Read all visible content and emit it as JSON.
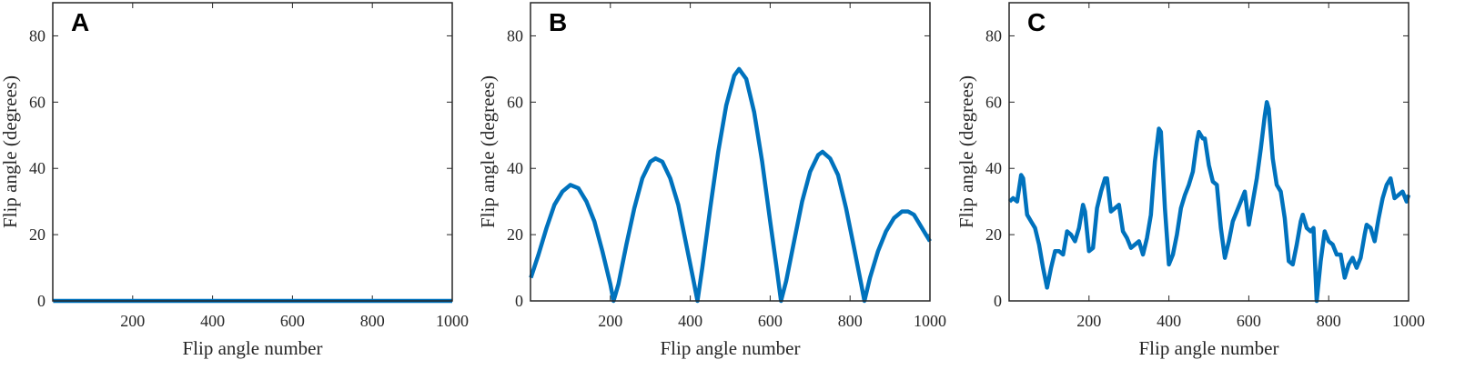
{
  "chart_data": [
    {
      "type": "line",
      "title": "A",
      "xlabel": "Flip angle number",
      "ylabel": "Flip angle (degrees)",
      "color": "#0072bd",
      "x": [
        1,
        1000
      ],
      "values": [
        0,
        0
      ],
      "xlim": [
        0,
        1000
      ],
      "xticks": [
        200,
        400,
        600,
        800,
        1000
      ],
      "ylim": [
        0,
        90
      ],
      "yticks": [
        0,
        20,
        40,
        60,
        80
      ]
    },
    {
      "type": "line",
      "title": "B",
      "xlabel": "Flip angle number",
      "ylabel": "Flip angle (degrees)",
      "color": "#0072bd",
      "x": [
        1,
        20,
        40,
        60,
        80,
        100,
        120,
        140,
        160,
        180,
        200,
        208,
        220,
        240,
        260,
        280,
        300,
        313,
        330,
        350,
        370,
        390,
        410,
        418,
        430,
        450,
        470,
        490,
        510,
        522,
        540,
        560,
        580,
        600,
        615,
        627,
        640,
        660,
        680,
        700,
        720,
        731,
        750,
        770,
        790,
        810,
        828,
        836,
        850,
        870,
        890,
        910,
        930,
        945,
        960,
        980,
        1000
      ],
      "values": [
        7,
        14,
        22,
        29,
        33,
        35,
        34,
        30,
        24,
        15,
        5,
        0,
        5,
        17,
        28,
        37,
        42,
        43,
        42,
        37,
        29,
        17,
        5,
        0,
        10,
        28,
        45,
        59,
        68,
        70,
        67,
        57,
        42,
        24,
        11,
        0,
        6,
        18,
        30,
        39,
        44,
        45,
        43,
        38,
        28,
        16,
        5,
        0,
        7,
        15,
        21,
        25,
        27,
        27,
        26,
        22,
        18
      ],
      "xlim": [
        0,
        1000
      ],
      "xticks": [
        200,
        400,
        600,
        800,
        1000
      ],
      "ylim": [
        0,
        90
      ],
      "yticks": [
        0,
        20,
        40,
        60,
        80
      ]
    },
    {
      "type": "line",
      "title": "C",
      "xlabel": "Flip angle number",
      "ylabel": "Flip angle (degrees)",
      "color": "#0072bd",
      "x": [
        1,
        10,
        20,
        30,
        35,
        45,
        55,
        65,
        75,
        85,
        95,
        105,
        115,
        125,
        135,
        145,
        155,
        165,
        175,
        185,
        190,
        200,
        210,
        220,
        230,
        240,
        245,
        255,
        265,
        275,
        285,
        295,
        305,
        315,
        325,
        335,
        345,
        355,
        365,
        375,
        380,
        390,
        400,
        410,
        420,
        430,
        440,
        450,
        460,
        470,
        475,
        485,
        490,
        500,
        510,
        520,
        530,
        540,
        550,
        560,
        570,
        580,
        590,
        600,
        610,
        620,
        630,
        640,
        645,
        650,
        660,
        670,
        680,
        690,
        700,
        710,
        720,
        730,
        735,
        745,
        755,
        762,
        770,
        780,
        790,
        800,
        810,
        820,
        830,
        840,
        850,
        860,
        870,
        880,
        890,
        895,
        905,
        915,
        925,
        935,
        945,
        955,
        965,
        975,
        985,
        995,
        1000
      ],
      "values": [
        30,
        31,
        30,
        38,
        37,
        26,
        24,
        22,
        17,
        10,
        4,
        10,
        15,
        15,
        14,
        21,
        20,
        18,
        22,
        29,
        27,
        15,
        16,
        28,
        33,
        37,
        37,
        27,
        28,
        29,
        21,
        19,
        16,
        17,
        18,
        14,
        19,
        26,
        42,
        52,
        51,
        28,
        11,
        14,
        20,
        28,
        32,
        35,
        39,
        48,
        51,
        49,
        49,
        41,
        36,
        35,
        22,
        13,
        18,
        24,
        27,
        30,
        33,
        23,
        30,
        37,
        46,
        56,
        60,
        58,
        43,
        35,
        33,
        25,
        12,
        11,
        17,
        24,
        26,
        22,
        21,
        22,
        0,
        12,
        21,
        18,
        17,
        14,
        14,
        7,
        11,
        13,
        10,
        13,
        20,
        23,
        22,
        18,
        25,
        31,
        35,
        37,
        31,
        32,
        33,
        30,
        32
      ],
      "xlim": [
        0,
        1000
      ],
      "xticks": [
        200,
        400,
        600,
        800,
        1000
      ],
      "ylim": [
        0,
        90
      ],
      "yticks": [
        0,
        20,
        40,
        60,
        80
      ]
    }
  ]
}
